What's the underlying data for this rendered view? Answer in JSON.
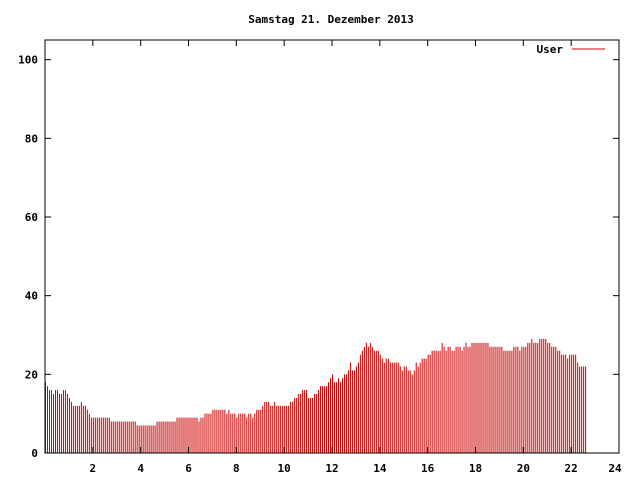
{
  "chart_data": {
    "type": "bar",
    "title": "Samstag 21. Dezember 2013",
    "xlabel": "",
    "ylabel": "",
    "xlim": [
      0,
      24
    ],
    "ylim": [
      0,
      105
    ],
    "x_ticks": [
      2,
      4,
      6,
      8,
      10,
      12,
      14,
      16,
      18,
      20,
      22,
      24
    ],
    "x_tick_labels": [
      "2",
      "4",
      "6",
      "8",
      "10",
      "12",
      "14",
      "16",
      "18",
      "20",
      "22",
      "24"
    ],
    "y_ticks": [
      0,
      20,
      40,
      60,
      80,
      100
    ],
    "y_tick_labels": [
      "0",
      "20",
      "40",
      "60",
      "80",
      "100"
    ],
    "grid": false,
    "legend_position": "top-right",
    "interval_minutes": 5,
    "series": [
      {
        "name": "User",
        "color": "#cc0000",
        "values": [
          18,
          17,
          16,
          16,
          15,
          16,
          16,
          15,
          15,
          16,
          16,
          15,
          14,
          13,
          12,
          12,
          12,
          12,
          13,
          12,
          12,
          11,
          10,
          9,
          9,
          9,
          9,
          9,
          9,
          9,
          9,
          9,
          9,
          8,
          8,
          8,
          8,
          8,
          8,
          8,
          8,
          8,
          8,
          8,
          8,
          8,
          7,
          7,
          7,
          7,
          7,
          7,
          7,
          7,
          7,
          7,
          8,
          8,
          8,
          8,
          8,
          8,
          8,
          8,
          8,
          8,
          9,
          9,
          9,
          9,
          9,
          9,
          9,
          9,
          9,
          9,
          9,
          8,
          9,
          9,
          10,
          10,
          10,
          10,
          11,
          11,
          11,
          11,
          11,
          11,
          11,
          10,
          11,
          10,
          10,
          10,
          9,
          10,
          10,
          10,
          10,
          9,
          10,
          10,
          9,
          10,
          11,
          11,
          11,
          12,
          13,
          13,
          13,
          12,
          12,
          13,
          12,
          12,
          12,
          12,
          12,
          12,
          12,
          13,
          13,
          14,
          14,
          15,
          15,
          16,
          16,
          16,
          14,
          14,
          14,
          15,
          15,
          16,
          17,
          17,
          17,
          17,
          18,
          19,
          20,
          18,
          18,
          19,
          18,
          19,
          20,
          20,
          21,
          23,
          21,
          21,
          22,
          23,
          25,
          26,
          27,
          28,
          27,
          28,
          27,
          26,
          26,
          26,
          25,
          24,
          23,
          24,
          24,
          23,
          23,
          23,
          23,
          23,
          22,
          21,
          22,
          22,
          21,
          21,
          20,
          21,
          23,
          22,
          23,
          24,
          24,
          24,
          25,
          25,
          26,
          26,
          26,
          26,
          26,
          28,
          27,
          26,
          27,
          27,
          26,
          26,
          27,
          27,
          27,
          26,
          27,
          28,
          27,
          27,
          28,
          28,
          28,
          28,
          28,
          28,
          28,
          28,
          28,
          27,
          27,
          27,
          27,
          27,
          27,
          27,
          26,
          26,
          26,
          26,
          26,
          27,
          27,
          27,
          26,
          27,
          27,
          27,
          28,
          28,
          29,
          28,
          28,
          28,
          29,
          29,
          29,
          29,
          28,
          28,
          27,
          27,
          27,
          26,
          26,
          25,
          25,
          25,
          24,
          25,
          25,
          25,
          25,
          23,
          22,
          22,
          22,
          22
        ]
      }
    ]
  }
}
